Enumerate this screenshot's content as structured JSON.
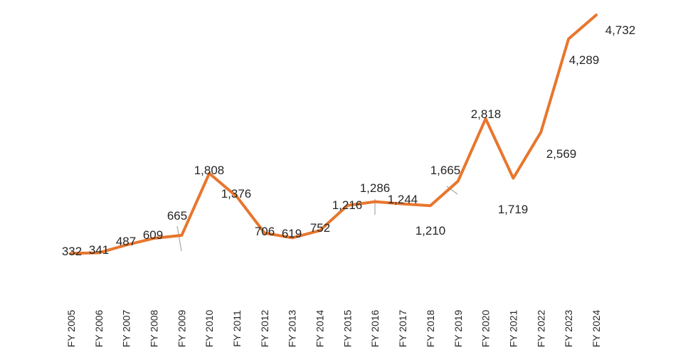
{
  "chart_data": {
    "type": "line",
    "title": "",
    "xlabel": "",
    "ylabel": "",
    "ylim": [
      0,
      5000
    ],
    "grid": false,
    "legend": "none",
    "categories": [
      "FY 2005",
      "FY 2006",
      "FY 2007",
      "FY 2008",
      "FY 2009",
      "FY 2010",
      "FY 2011",
      "FY 2012",
      "FY 2013",
      "FY 2014",
      "FY 2015",
      "FY 2016",
      "FY 2017",
      "FY 2018",
      "FY 2019",
      "FY 2020",
      "FY 2021",
      "FY 2022",
      "FY 2023",
      "FY 2024"
    ],
    "series": [
      {
        "values": [
          332,
          341,
          487,
          609,
          665,
          1808,
          1376,
          706,
          619,
          752,
          1216,
          1286,
          1244,
          1210,
          1665,
          2818,
          1719,
          2569,
          4289,
          4732
        ],
        "labels": [
          "332",
          "341",
          "487",
          "609",
          "665",
          "1,808",
          "1,376",
          "706",
          "619",
          "752",
          "1,216",
          "1,286",
          "1,244",
          "1,210",
          "1,665",
          "2,818",
          "1,719",
          "2,569",
          "4,289",
          "4,732"
        ],
        "color": "#E8762D"
      }
    ]
  },
  "colors": {
    "line": "#E8762D",
    "leader": "#A6A6A6",
    "text": "#262626"
  }
}
